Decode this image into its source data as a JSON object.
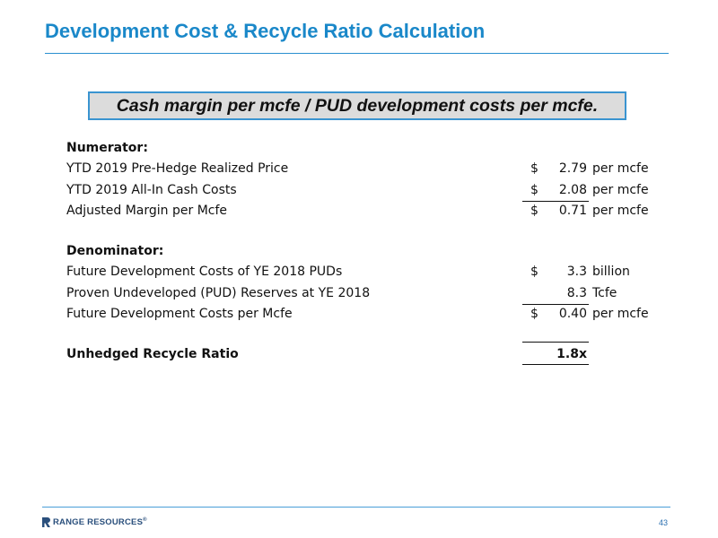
{
  "title": "Development Cost & Recycle Ratio Calculation",
  "formula": "Cash margin per mcfe / PUD development costs per mcfe.",
  "numerator": {
    "heading": "Numerator:",
    "rows": [
      {
        "label": "YTD 2019 Pre-Hedge Realized Price",
        "currency": "$",
        "value": "2.79",
        "unit": "per mcfe"
      },
      {
        "label": "YTD 2019 All-In Cash Costs",
        "currency": "$",
        "value": "2.08",
        "unit": "per mcfe"
      },
      {
        "label": "Adjusted Margin per Mcfe",
        "currency": "$",
        "value": "0.71",
        "unit": "per mcfe"
      }
    ]
  },
  "denominator": {
    "heading": "Denominator:",
    "rows": [
      {
        "label": "Future Development Costs of YE 2018 PUDs",
        "currency": "$",
        "value": "3.3",
        "unit": "billion"
      },
      {
        "label": "Proven Undeveloped (PUD) Reserves at YE 2018",
        "currency": "",
        "value": "8.3",
        "unit": "Tcfe"
      },
      {
        "label": "Future Development Costs per Mcfe",
        "currency": "$",
        "value": "0.40",
        "unit": "per mcfe"
      }
    ]
  },
  "result": {
    "label": "Unhedged Recycle Ratio",
    "value": "1.8x"
  },
  "footer": {
    "logo_text": "RANGE RESOURCES",
    "logo_mark": "®",
    "page_number": "43"
  },
  "colors": {
    "accent": "#1a88c9",
    "formula_bg": "#dcdcdc",
    "logo": "#2a4f7c"
  }
}
